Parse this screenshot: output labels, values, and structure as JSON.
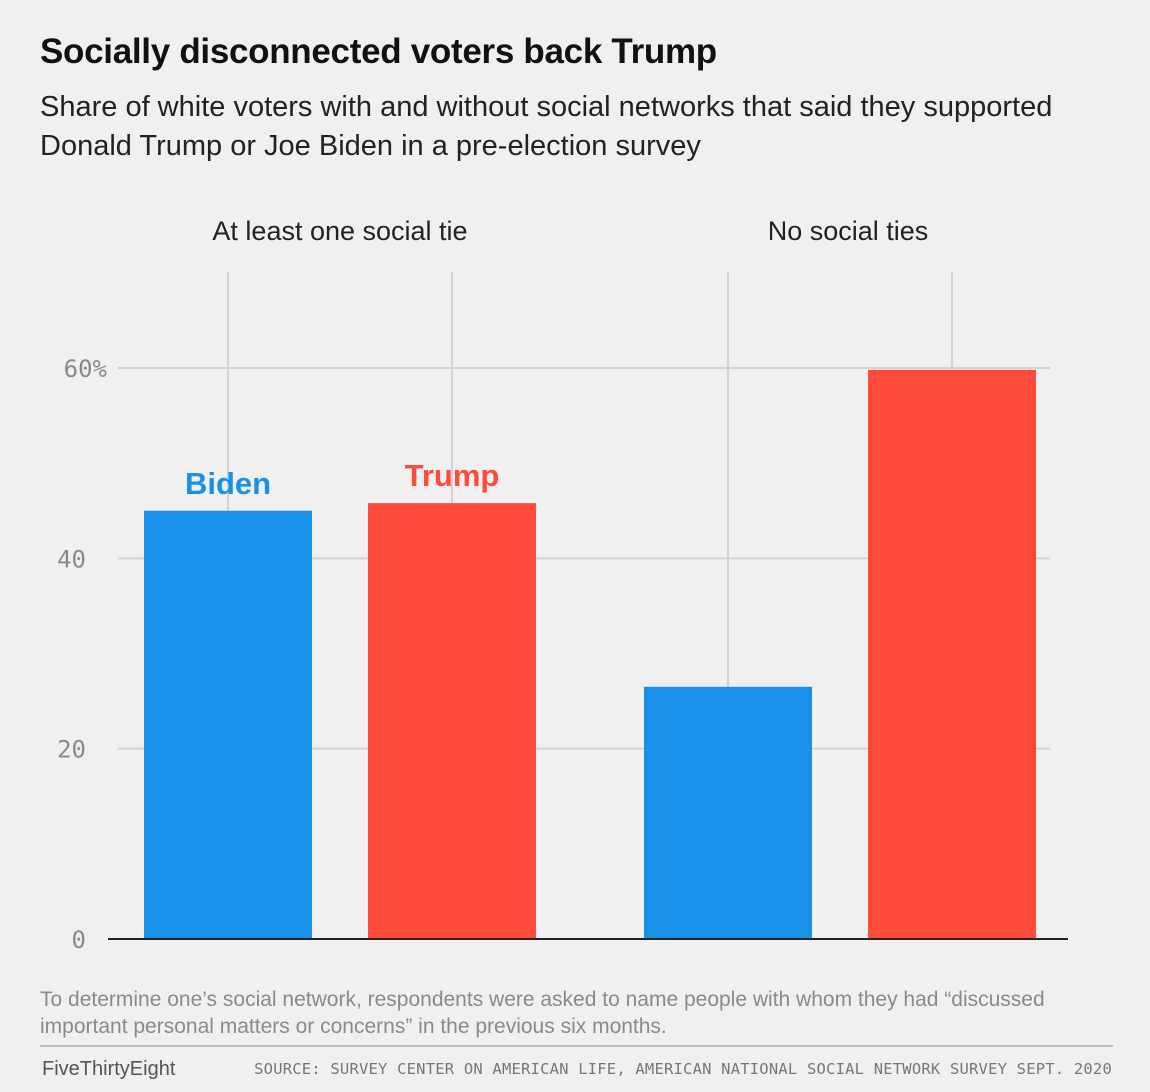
{
  "header": {
    "title": "Socially disconnected voters back Trump",
    "subtitle": "Share of white voters with and without social networks that said they supported Donald Trump or Joe Biden in a pre-election survey"
  },
  "footer": {
    "note": "To determine one’s social network, respondents were asked to name people with whom they had “discussed important personal matters or concerns” in the previous six months.",
    "brand": "FiveThirtyEight",
    "source": "SOURCE: SURVEY CENTER ON AMERICAN LIFE, AMERICAN NATIONAL SOCIAL NETWORK SURVEY SEPT. 2020"
  },
  "chart_data": {
    "type": "bar",
    "title": "Socially disconnected voters back Trump",
    "categories": [
      "At least one social tie",
      "No social ties"
    ],
    "series": [
      {
        "name": "Biden",
        "color": "#1a91e8",
        "values": [
          45,
          26.5
        ]
      },
      {
        "name": "Trump",
        "color": "#ff4a3c",
        "values": [
          45.8,
          59.8
        ]
      }
    ],
    "ylim": [
      0,
      60
    ],
    "yticks": [
      0,
      20,
      40,
      60
    ],
    "ytick_labels": [
      "0",
      "20",
      "40",
      "60%"
    ],
    "grid": true,
    "legend": "direct labels above first group bars"
  }
}
